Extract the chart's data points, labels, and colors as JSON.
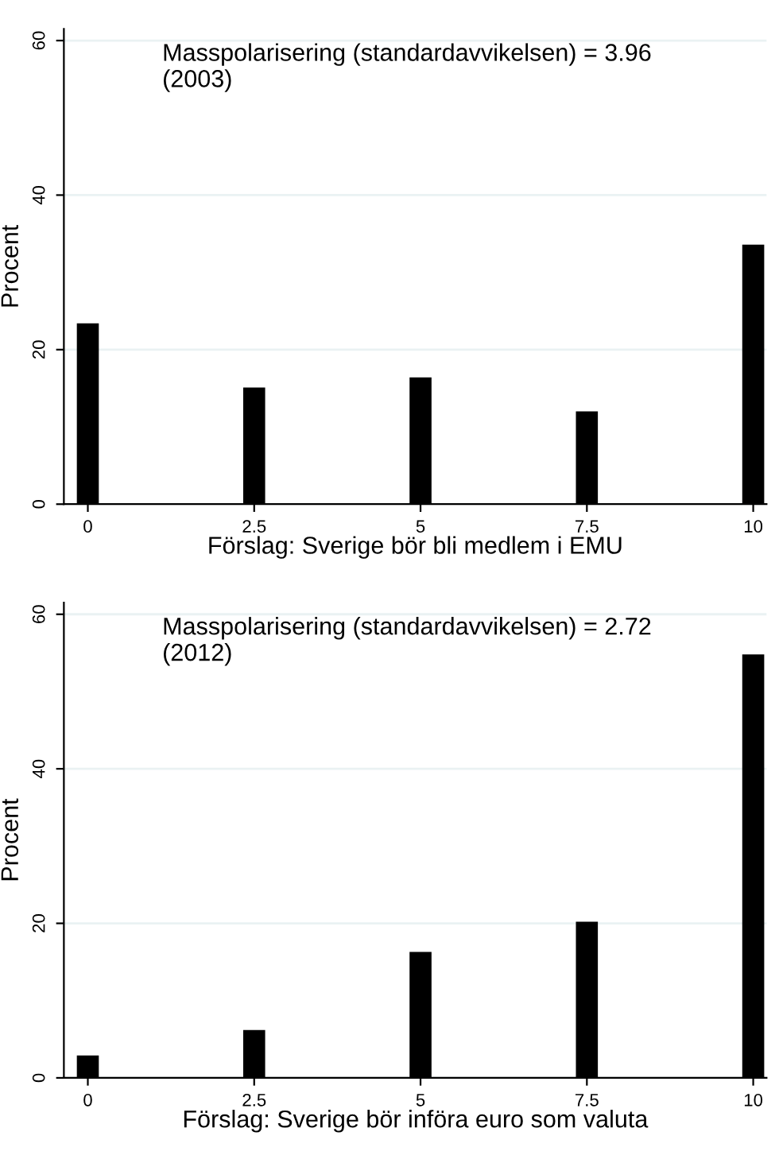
{
  "chart_data": [
    {
      "type": "bar",
      "x": [
        0,
        2.5,
        5,
        7.5,
        10
      ],
      "values": [
        23.4,
        15.1,
        16.4,
        12.0,
        33.6
      ],
      "color": "#000000",
      "xlabel": "Förslag: Sverige bör bli medlem i EMU",
      "ylabel": "Procent",
      "annotations": [
        "Masspolarisering (standardavvikelsen) = 3.96\n(2003)"
      ],
      "xlim": [
        -0.36,
        10.2
      ],
      "xticks": [
        0,
        2.5,
        5,
        7.5,
        10
      ],
      "ylim": [
        0,
        61.5
      ],
      "yticks": [
        0,
        20,
        40,
        60
      ],
      "grid": "y"
    },
    {
      "type": "bar",
      "x": [
        0,
        2.5,
        5,
        7.5,
        10
      ],
      "values": [
        2.9,
        6.2,
        16.3,
        20.2,
        54.8
      ],
      "color": "#000000",
      "xlabel": "Förslag: Sverige bör införa euro som valuta",
      "ylabel": "Procent",
      "annotations": [
        "Masspolarisering (standardavvikelsen) = 2.72\n(2012)"
      ],
      "xlim": [
        -0.36,
        10.2
      ],
      "xticks": [
        0,
        2.5,
        5,
        7.5,
        10
      ],
      "ylim": [
        0,
        61.5
      ],
      "yticks": [
        0,
        20,
        40,
        60
      ],
      "grid": "y"
    }
  ]
}
